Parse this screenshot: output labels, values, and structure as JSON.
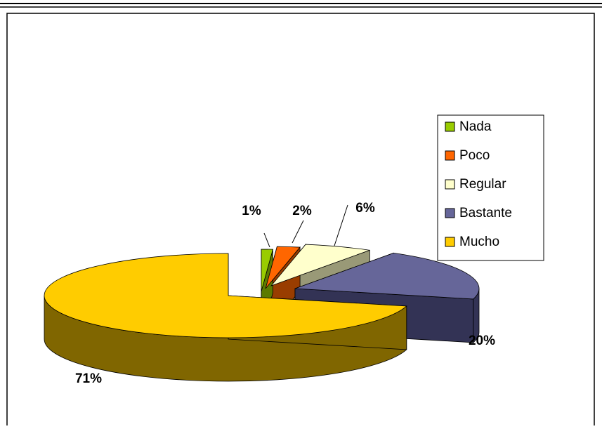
{
  "chart_data": {
    "type": "pie",
    "title": "",
    "categories": [
      "Nada",
      "Poco",
      "Regular",
      "Bastante",
      "Mucho"
    ],
    "values": [
      1,
      2,
      6,
      20,
      71
    ],
    "data_labels": [
      "1%",
      "2%",
      "6%",
      "20%",
      "71%"
    ],
    "legend": {
      "position": "right",
      "items": [
        "Nada",
        "Poco",
        "Regular",
        "Bastante",
        "Mucho"
      ]
    },
    "colors": [
      "#99cc00",
      "#ff6600",
      "#ffffcc",
      "#666699",
      "#ffcc00"
    ],
    "style": "3d-exploded"
  }
}
